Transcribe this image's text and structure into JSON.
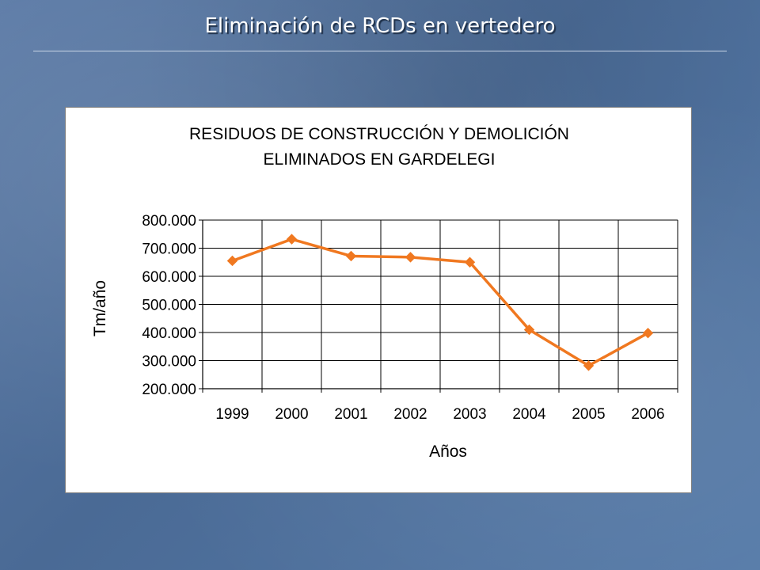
{
  "slide": {
    "title": "Eliminación de RCDs en vertedero"
  },
  "chart_data": {
    "type": "line",
    "title_lines": [
      "RESIDUOS DE CONSTRUCCIÓN Y DEMOLICIÓN",
      "ELIMINADOS EN GARDELEGI"
    ],
    "xlabel": "Años",
    "ylabel": "Tm/año",
    "categories": [
      "1999",
      "2000",
      "2001",
      "2002",
      "2003",
      "2004",
      "2005",
      "2006"
    ],
    "series": [
      {
        "values": [
          655000,
          732000,
          672000,
          668000,
          650000,
          410000,
          282000,
          398000
        ]
      }
    ],
    "ylim": [
      200000,
      800000
    ],
    "yticks": [
      200000,
      300000,
      400000,
      500000,
      600000,
      700000,
      800000
    ],
    "ytick_labels": [
      "200.000",
      "300.000",
      "400.000",
      "500.000",
      "600.000",
      "700.000",
      "800.000"
    ],
    "grid": true,
    "line_color": "#f07820"
  }
}
